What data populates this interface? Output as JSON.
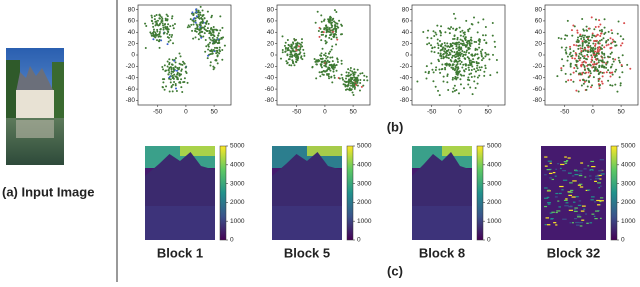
{
  "figure": {
    "input_label": "(a) Input Image",
    "b_label": "(b)",
    "c_label": "(c)",
    "scatter": {
      "xlim": [
        -85,
        80
      ],
      "ylim": [
        -88,
        88
      ],
      "xticks": [
        -50,
        0,
        50
      ],
      "yticks": [
        80,
        60,
        40,
        20,
        0,
        -20,
        -40,
        -60,
        -80
      ]
    },
    "colorbar": {
      "lim": [
        0,
        5000
      ],
      "ticks": [
        0,
        1000,
        2000,
        3000,
        4000,
        5000
      ]
    },
    "blocks": [
      "Block 1",
      "Block 5",
      "Block 8",
      "Block 32"
    ]
  }
}
